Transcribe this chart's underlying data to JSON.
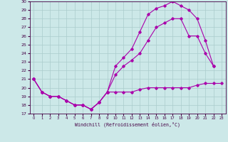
{
  "title": "",
  "xlabel": "Windchill (Refroidissement éolien,°C)",
  "background_color": "#cce8e8",
  "grid_color": "#aacccc",
  "line_color": "#aa00aa",
  "x_min": 0,
  "x_max": 23,
  "y_min": 17,
  "y_max": 30,
  "curve1_x": [
    0,
    1,
    2,
    3,
    4,
    5,
    6,
    7,
    8,
    9,
    10,
    11,
    12,
    13,
    14,
    15,
    16,
    17,
    18,
    19,
    20,
    21,
    22,
    23
  ],
  "curve1_y": [
    21.0,
    19.5,
    19.0,
    19.0,
    18.5,
    18.0,
    18.0,
    17.5,
    18.3,
    19.5,
    19.5,
    19.5,
    19.5,
    19.8,
    20.0,
    20.0,
    20.0,
    20.0,
    20.0,
    20.0,
    20.3,
    20.5,
    20.5,
    20.5
  ],
  "curve2_x": [
    0,
    1,
    2,
    3,
    4,
    5,
    6,
    7,
    8,
    9,
    10,
    11,
    12,
    13,
    14,
    15,
    16,
    17,
    18,
    19,
    20,
    21,
    22
  ],
  "curve2_y": [
    21.0,
    19.5,
    19.0,
    19.0,
    18.5,
    18.0,
    18.0,
    17.5,
    18.3,
    19.5,
    22.5,
    23.5,
    24.5,
    26.5,
    28.5,
    29.2,
    29.5,
    30.0,
    29.5,
    29.0,
    28.0,
    25.5,
    22.5
  ],
  "curve3_x": [
    0,
    1,
    2,
    3,
    4,
    5,
    6,
    7,
    8,
    9,
    10,
    11,
    12,
    13,
    14,
    15,
    16,
    17,
    18,
    19,
    20,
    21,
    22
  ],
  "curve3_y": [
    21.0,
    19.5,
    19.0,
    19.0,
    18.5,
    18.0,
    18.0,
    17.5,
    18.3,
    19.5,
    21.5,
    22.5,
    23.2,
    24.0,
    25.5,
    27.0,
    27.5,
    28.0,
    28.0,
    26.0,
    26.0,
    24.0,
    22.5
  ]
}
